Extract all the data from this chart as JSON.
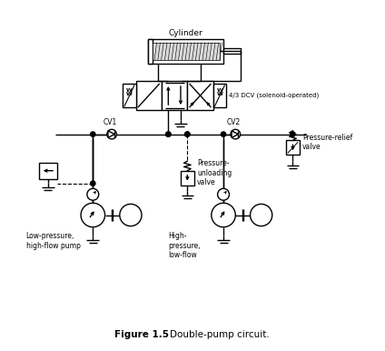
{
  "title": "Double-pump circuit.",
  "fig_num": "Figure 1.5",
  "bg_color": "#ffffff",
  "line_color": "#000000",
  "fig_width": 4.24,
  "fig_height": 3.86,
  "dpi": 100,
  "lw": 1.0,
  "labels": {
    "cylinder": "Cylinder",
    "dcv": "4/3 DCV (solenoid-operated)",
    "cv1": "CV1",
    "cv2": "CV2",
    "pressure_relief": "Pressure-relief\nvalve",
    "pressure_unloading": "Pressure-\nunloading\nvalve",
    "low_pressure_pump": "Low-pressure,\nhigh-flow pump",
    "high_pressure_pump": "High-\npressure,\nlow-flow"
  }
}
